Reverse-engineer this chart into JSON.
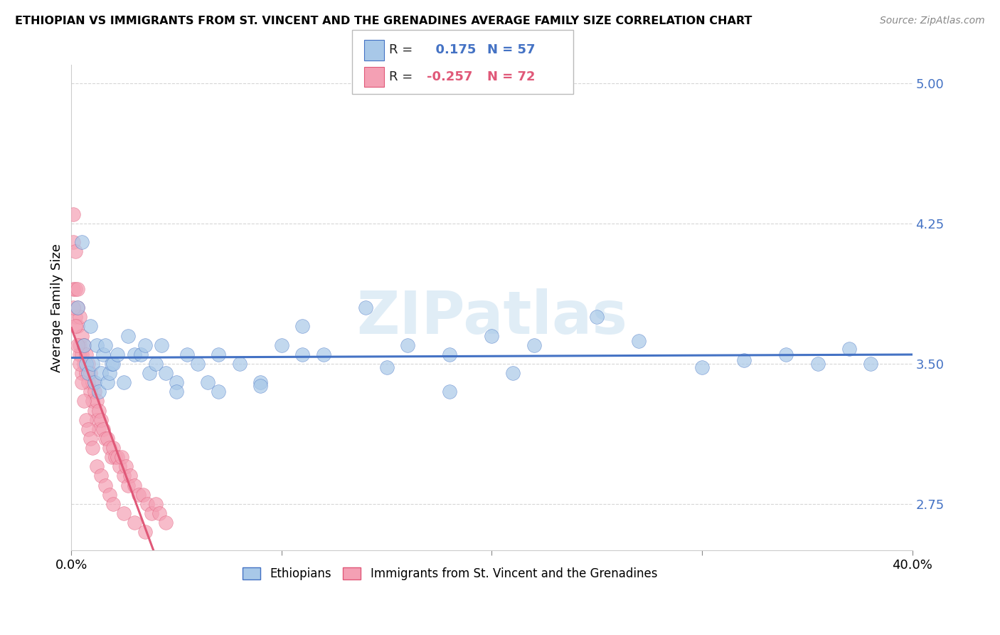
{
  "title": "ETHIOPIAN VS IMMIGRANTS FROM ST. VINCENT AND THE GRENADINES AVERAGE FAMILY SIZE CORRELATION CHART",
  "source": "Source: ZipAtlas.com",
  "ylabel": "Average Family Size",
  "xlim": [
    0.0,
    0.4
  ],
  "ylim": [
    2.5,
    5.1
  ],
  "yticks": [
    2.75,
    3.5,
    4.25,
    5.0
  ],
  "xticks": [
    0.0,
    0.1,
    0.2,
    0.3,
    0.4
  ],
  "xticklabels": [
    "0.0%",
    "",
    "",
    "",
    "40.0%"
  ],
  "r_ethiopian": 0.175,
  "n_ethiopian": 57,
  "r_stvincent": -0.257,
  "n_stvincent": 72,
  "color_ethiopian": "#a8c8e8",
  "color_stvincent": "#f4a0b4",
  "line_ethiopian": "#4472c4",
  "line_stvincent": "#e05878",
  "background": "#ffffff",
  "watermark": "ZIPatlas",
  "ethiopian_x": [
    0.003,
    0.005,
    0.006,
    0.007,
    0.008,
    0.009,
    0.01,
    0.011,
    0.012,
    0.013,
    0.014,
    0.015,
    0.016,
    0.017,
    0.018,
    0.019,
    0.02,
    0.022,
    0.025,
    0.027,
    0.03,
    0.033,
    0.035,
    0.037,
    0.04,
    0.043,
    0.045,
    0.05,
    0.055,
    0.06,
    0.065,
    0.07,
    0.08,
    0.09,
    0.1,
    0.11,
    0.12,
    0.14,
    0.16,
    0.18,
    0.2,
    0.22,
    0.25,
    0.27,
    0.3,
    0.32,
    0.34,
    0.355,
    0.37,
    0.38,
    0.05,
    0.07,
    0.09,
    0.11,
    0.15,
    0.18,
    0.21
  ],
  "ethiopian_y": [
    3.8,
    4.15,
    3.6,
    3.5,
    3.45,
    3.7,
    3.5,
    3.4,
    3.6,
    3.35,
    3.45,
    3.55,
    3.6,
    3.4,
    3.45,
    3.5,
    3.5,
    3.55,
    3.4,
    3.65,
    3.55,
    3.55,
    3.6,
    3.45,
    3.5,
    3.6,
    3.45,
    3.4,
    3.55,
    3.5,
    3.4,
    3.55,
    3.5,
    3.4,
    3.6,
    3.7,
    3.55,
    3.8,
    3.6,
    3.55,
    3.65,
    3.6,
    3.75,
    3.62,
    3.48,
    3.52,
    3.55,
    3.5,
    3.58,
    3.5,
    3.35,
    3.35,
    3.38,
    3.55,
    3.48,
    3.35,
    3.45
  ],
  "stvincent_x": [
    0.001,
    0.001,
    0.001,
    0.002,
    0.002,
    0.002,
    0.003,
    0.003,
    0.003,
    0.004,
    0.004,
    0.004,
    0.005,
    0.005,
    0.005,
    0.006,
    0.006,
    0.007,
    0.007,
    0.008,
    0.008,
    0.009,
    0.009,
    0.01,
    0.01,
    0.011,
    0.011,
    0.012,
    0.012,
    0.013,
    0.013,
    0.014,
    0.015,
    0.016,
    0.017,
    0.018,
    0.019,
    0.02,
    0.021,
    0.022,
    0.023,
    0.024,
    0.025,
    0.026,
    0.027,
    0.028,
    0.03,
    0.032,
    0.034,
    0.036,
    0.038,
    0.04,
    0.042,
    0.045,
    0.001,
    0.002,
    0.003,
    0.004,
    0.005,
    0.006,
    0.007,
    0.008,
    0.009,
    0.01,
    0.012,
    0.014,
    0.016,
    0.018,
    0.02,
    0.025,
    0.03,
    0.035
  ],
  "stvincent_y": [
    4.3,
    4.15,
    3.9,
    4.1,
    3.9,
    3.75,
    3.9,
    3.8,
    3.7,
    3.75,
    3.6,
    3.55,
    3.65,
    3.55,
    3.45,
    3.6,
    3.5,
    3.55,
    3.45,
    3.5,
    3.4,
    3.45,
    3.35,
    3.4,
    3.3,
    3.35,
    3.25,
    3.3,
    3.2,
    3.25,
    3.15,
    3.2,
    3.15,
    3.1,
    3.1,
    3.05,
    3.0,
    3.05,
    3.0,
    3.0,
    2.95,
    3.0,
    2.9,
    2.95,
    2.85,
    2.9,
    2.85,
    2.8,
    2.8,
    2.75,
    2.7,
    2.75,
    2.7,
    2.65,
    3.8,
    3.7,
    3.6,
    3.5,
    3.4,
    3.3,
    3.2,
    3.15,
    3.1,
    3.05,
    2.95,
    2.9,
    2.85,
    2.8,
    2.75,
    2.7,
    2.65,
    2.6
  ]
}
